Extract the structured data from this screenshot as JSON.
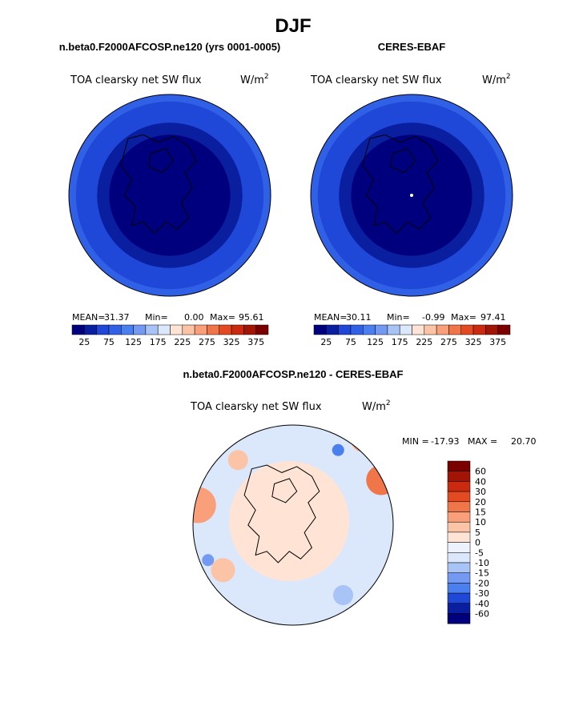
{
  "page_title": "DJF",
  "palette_colors": {
    "sequential": [
      "#00007f",
      "#0a1fa0",
      "#1f47d8",
      "#3060e6",
      "#4a7ff0",
      "#7399f2",
      "#a8c3f5",
      "#dbe7fb",
      "#ffe4d6",
      "#fcc4a6",
      "#f9a07a",
      "#f07548",
      "#e44a22",
      "#c92a10",
      "#a11406",
      "#7a0000"
    ],
    "diverging": [
      "#7a0000",
      "#a11406",
      "#c92a10",
      "#e44a22",
      "#f07548",
      "#f9a07a",
      "#fcc4a6",
      "#ffe4d6",
      "#eef2ff",
      "#dbe7fb",
      "#a8c3f5",
      "#7399f2",
      "#4a7ff0",
      "#1f47d8",
      "#0a1fa0",
      "#00007f"
    ]
  },
  "chart_data": [
    {
      "type": "heatmap",
      "panel_title": "n.beta0.F2000AFCOSP.ne120 (yrs 0001-0005)",
      "plot_title": "TOA clearsky net SW flux",
      "units_base": "W/m",
      "units_sup": "2",
      "projection": "north polar stereographic",
      "stats": {
        "mean_label": "MEAN=",
        "mean": "31.37",
        "min_label": "Min=",
        "min": "0.00",
        "max_label": "Max=",
        "max": "95.61"
      },
      "colorbar_ticks": [
        "25",
        "75",
        "125",
        "175",
        "225",
        "275",
        "325",
        "375"
      ],
      "rings_values": [
        90,
        70,
        50,
        30,
        15
      ]
    },
    {
      "type": "heatmap",
      "panel_title": "CERES-EBAF",
      "plot_title": "TOA clearsky net SW flux",
      "units_base": "W/m",
      "units_sup": "2",
      "projection": "north polar stereographic",
      "stats": {
        "mean_label": "MEAN=",
        "mean": "30.11",
        "min_label": "Min=",
        "min": "-0.99",
        "max_label": "Max=",
        "max": "97.41"
      },
      "colorbar_ticks": [
        "25",
        "75",
        "125",
        "175",
        "225",
        "275",
        "325",
        "375"
      ],
      "rings_values": [
        90,
        70,
        50,
        30,
        15
      ]
    },
    {
      "type": "heatmap",
      "panel_title": "n.beta0.F2000AFCOSP.ne120 - CERES-EBAF",
      "plot_title": "TOA clearsky net SW flux",
      "units_base": "W/m",
      "units_sup": "2",
      "projection": "north polar stereographic",
      "stats": {
        "min_label": "MIN =",
        "min": "-17.93",
        "max_label": "MAX =",
        "max": "20.70"
      },
      "colorbar_ticks": [
        "60",
        "40",
        "30",
        "20",
        "15",
        "10",
        "5",
        "0",
        "-5",
        "-10",
        "-15",
        "-20",
        "-30",
        "-40",
        "-60"
      ]
    }
  ]
}
